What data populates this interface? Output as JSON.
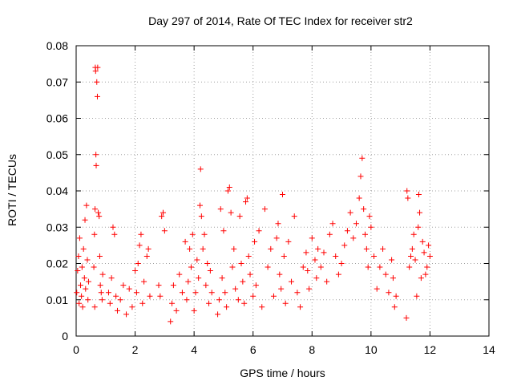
{
  "chart_data": {
    "type": "scatter",
    "title": "Day 297 of 2014, Rate Of TEC Index for receiver str2",
    "xlabel": "GPS time / hours",
    "ylabel": "ROTI / TECUs",
    "xlim": [
      0,
      14
    ],
    "ylim": [
      0,
      0.08
    ],
    "xticks": [
      "0",
      "2",
      "4",
      "6",
      "8",
      "10",
      "12",
      "14"
    ],
    "yticks": [
      "0",
      "0.01",
      "0.02",
      "0.03",
      "0.04",
      "0.05",
      "0.06",
      "0.07",
      "0.08"
    ],
    "grid": true,
    "marker": "+",
    "color": "#ff0000",
    "series": [
      {
        "name": "ROTI",
        "points": [
          [
            0.02,
            0.012
          ],
          [
            0.05,
            0.018
          ],
          [
            0.08,
            0.022
          ],
          [
            0.1,
            0.009
          ],
          [
            0.12,
            0.027
          ],
          [
            0.15,
            0.014
          ],
          [
            0.18,
            0.011
          ],
          [
            0.2,
            0.019
          ],
          [
            0.22,
            0.008
          ],
          [
            0.25,
            0.024
          ],
          [
            0.28,
            0.016
          ],
          [
            0.3,
            0.032
          ],
          [
            0.32,
            0.013
          ],
          [
            0.35,
            0.036
          ],
          [
            0.38,
            0.021
          ],
          [
            0.4,
            0.01
          ],
          [
            0.42,
            0.015
          ],
          [
            0.6,
            0.019
          ],
          [
            0.62,
            0.028
          ],
          [
            0.64,
            0.035
          ],
          [
            0.65,
            0.074
          ],
          [
            0.66,
            0.073
          ],
          [
            0.67,
            0.05
          ],
          [
            0.68,
            0.047
          ],
          [
            0.7,
            0.07
          ],
          [
            0.72,
            0.066
          ],
          [
            0.73,
            0.074
          ],
          [
            0.75,
            0.034
          ],
          [
            0.78,
            0.033
          ],
          [
            0.8,
            0.022
          ],
          [
            0.82,
            0.014
          ],
          [
            0.85,
            0.012
          ],
          [
            0.88,
            0.01
          ],
          [
            0.9,
            0.017
          ],
          [
            0.63,
            0.008
          ],
          [
            1.1,
            0.012
          ],
          [
            1.15,
            0.009
          ],
          [
            1.2,
            0.016
          ],
          [
            1.25,
            0.03
          ],
          [
            1.3,
            0.028
          ],
          [
            1.35,
            0.011
          ],
          [
            1.4,
            0.007
          ],
          [
            1.5,
            0.01
          ],
          [
            1.6,
            0.014
          ],
          [
            1.7,
            0.006
          ],
          [
            1.8,
            0.013
          ],
          [
            1.9,
            0.008
          ],
          [
            2.0,
            0.018
          ],
          [
            2.05,
            0.012
          ],
          [
            2.1,
            0.02
          ],
          [
            2.15,
            0.025
          ],
          [
            2.2,
            0.028
          ],
          [
            2.25,
            0.009
          ],
          [
            2.3,
            0.015
          ],
          [
            2.4,
            0.022
          ],
          [
            2.45,
            0.024
          ],
          [
            2.5,
            0.011
          ],
          [
            2.8,
            0.014
          ],
          [
            2.85,
            0.011
          ],
          [
            2.9,
            0.033
          ],
          [
            2.95,
            0.034
          ],
          [
            3.0,
            0.029
          ],
          [
            3.2,
            0.004
          ],
          [
            3.25,
            0.009
          ],
          [
            3.3,
            0.014
          ],
          [
            3.4,
            0.007
          ],
          [
            3.5,
            0.017
          ],
          [
            3.6,
            0.012
          ],
          [
            3.7,
            0.026
          ],
          [
            3.75,
            0.01
          ],
          [
            3.8,
            0.015
          ],
          [
            3.85,
            0.024
          ],
          [
            3.9,
            0.019
          ],
          [
            3.95,
            0.028
          ],
          [
            4.0,
            0.007
          ],
          [
            4.05,
            0.012
          ],
          [
            4.1,
            0.021
          ],
          [
            4.15,
            0.016
          ],
          [
            4.2,
            0.036
          ],
          [
            4.22,
            0.046
          ],
          [
            4.25,
            0.033
          ],
          [
            4.3,
            0.024
          ],
          [
            4.35,
            0.028
          ],
          [
            4.4,
            0.014
          ],
          [
            4.45,
            0.02
          ],
          [
            4.5,
            0.009
          ],
          [
            4.55,
            0.018
          ],
          [
            4.6,
            0.012
          ],
          [
            4.8,
            0.006
          ],
          [
            4.85,
            0.01
          ],
          [
            4.9,
            0.035
          ],
          [
            4.95,
            0.016
          ],
          [
            5.0,
            0.029
          ],
          [
            5.05,
            0.012
          ],
          [
            5.1,
            0.008
          ],
          [
            5.15,
            0.04
          ],
          [
            5.2,
            0.041
          ],
          [
            5.25,
            0.034
          ],
          [
            5.3,
            0.019
          ],
          [
            5.35,
            0.024
          ],
          [
            5.4,
            0.013
          ],
          [
            5.5,
            0.01
          ],
          [
            5.55,
            0.033
          ],
          [
            5.6,
            0.02
          ],
          [
            5.65,
            0.015
          ],
          [
            5.7,
            0.009
          ],
          [
            5.75,
            0.037
          ],
          [
            5.8,
            0.038
          ],
          [
            5.85,
            0.022
          ],
          [
            5.9,
            0.017
          ],
          [
            6.0,
            0.011
          ],
          [
            6.05,
            0.026
          ],
          [
            6.1,
            0.014
          ],
          [
            6.2,
            0.029
          ],
          [
            6.3,
            0.008
          ],
          [
            6.4,
            0.035
          ],
          [
            6.5,
            0.019
          ],
          [
            6.6,
            0.024
          ],
          [
            6.7,
            0.011
          ],
          [
            6.8,
            0.027
          ],
          [
            6.85,
            0.031
          ],
          [
            6.9,
            0.017
          ],
          [
            6.95,
            0.013
          ],
          [
            7.0,
            0.039
          ],
          [
            7.05,
            0.022
          ],
          [
            7.1,
            0.009
          ],
          [
            7.2,
            0.026
          ],
          [
            7.3,
            0.015
          ],
          [
            7.4,
            0.033
          ],
          [
            7.5,
            0.012
          ],
          [
            7.6,
            0.008
          ],
          [
            7.7,
            0.019
          ],
          [
            7.8,
            0.023
          ],
          [
            7.85,
            0.018
          ],
          [
            7.9,
            0.013
          ],
          [
            8.0,
            0.027
          ],
          [
            8.1,
            0.021
          ],
          [
            8.15,
            0.016
          ],
          [
            8.2,
            0.024
          ],
          [
            8.3,
            0.019
          ],
          [
            8.4,
            0.023
          ],
          [
            8.5,
            0.015
          ],
          [
            8.6,
            0.028
          ],
          [
            8.7,
            0.031
          ],
          [
            8.8,
            0.022
          ],
          [
            8.9,
            0.017
          ],
          [
            9.0,
            0.02
          ],
          [
            9.1,
            0.025
          ],
          [
            9.2,
            0.029
          ],
          [
            9.3,
            0.034
          ],
          [
            9.4,
            0.027
          ],
          [
            9.5,
            0.031
          ],
          [
            9.6,
            0.038
          ],
          [
            9.65,
            0.044
          ],
          [
            9.7,
            0.049
          ],
          [
            9.75,
            0.035
          ],
          [
            9.8,
            0.028
          ],
          [
            9.85,
            0.024
          ],
          [
            9.9,
            0.019
          ],
          [
            9.95,
            0.033
          ],
          [
            10.0,
            0.03
          ],
          [
            10.1,
            0.022
          ],
          [
            10.2,
            0.013
          ],
          [
            10.3,
            0.019
          ],
          [
            10.4,
            0.024
          ],
          [
            10.5,
            0.017
          ],
          [
            10.6,
            0.012
          ],
          [
            10.7,
            0.021
          ],
          [
            10.75,
            0.016
          ],
          [
            10.8,
            0.008
          ],
          [
            10.85,
            0.011
          ],
          [
            11.2,
            0.005
          ],
          [
            11.22,
            0.04
          ],
          [
            11.25,
            0.038
          ],
          [
            11.3,
            0.019
          ],
          [
            11.35,
            0.022
          ],
          [
            11.4,
            0.024
          ],
          [
            11.45,
            0.028
          ],
          [
            11.5,
            0.021
          ],
          [
            11.55,
            0.011
          ],
          [
            11.6,
            0.03
          ],
          [
            11.62,
            0.039
          ],
          [
            11.65,
            0.034
          ],
          [
            11.7,
            0.016
          ],
          [
            11.75,
            0.026
          ],
          [
            11.8,
            0.023
          ],
          [
            11.85,
            0.017
          ],
          [
            11.9,
            0.019
          ],
          [
            11.95,
            0.025
          ],
          [
            12.0,
            0.022
          ]
        ]
      }
    ]
  }
}
